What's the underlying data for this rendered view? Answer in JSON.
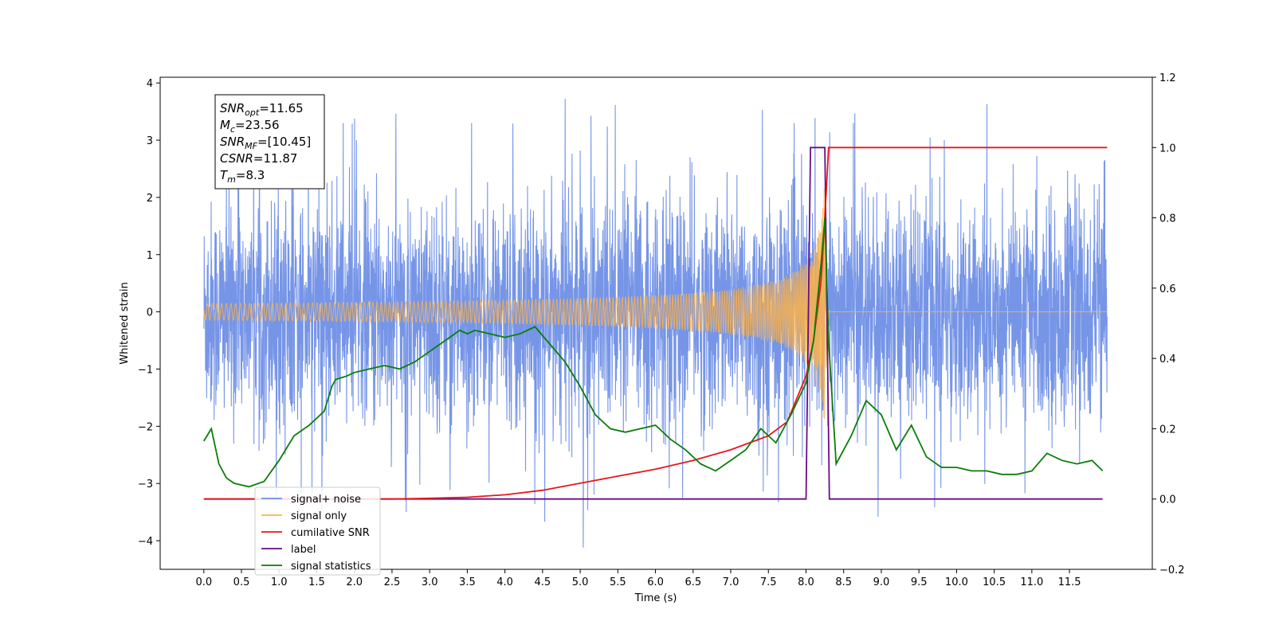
{
  "chart_data": {
    "type": "line",
    "xlabel": "Time (s)",
    "ylabel_left": "Whitened strain",
    "ylabel_right": "",
    "xlim": [
      -0.58,
      12.6
    ],
    "ylim_left": [
      -4.5,
      4.1
    ],
    "ylim_right": [
      -0.2,
      1.2
    ],
    "x_ticks": [
      "0.0",
      "0.5",
      "1.0",
      "1.5",
      "2.0",
      "2.5",
      "3.0",
      "3.5",
      "4.0",
      "4.5",
      "5.0",
      "5.5",
      "6.0",
      "6.5",
      "7.0",
      "7.5",
      "8.0",
      "8.5",
      "9.0",
      "9.5",
      "10.0",
      "10.5",
      "11.0",
      "11.5"
    ],
    "y_ticks_left": [
      "4",
      "3",
      "2",
      "1",
      "0",
      "−1",
      "−2",
      "−3",
      "−4"
    ],
    "y_ticks_right": [
      "1.2",
      "1.0",
      "0.8",
      "0.6",
      "0.4",
      "0.2",
      "0.0",
      "−0.2"
    ],
    "grid": false,
    "legend_position": "lower-left",
    "series": [
      {
        "name": "signal+ noise",
        "axis": "left",
        "color": "#6f8fe6",
        "description_points": {
          "x_range": [
            0.0,
            12.0
          ],
          "envelope": [
            -1.8,
            1.8
          ],
          "spike_max": 3.72,
          "spike_min": -4.12
        }
      },
      {
        "name": "signal only",
        "axis": "left",
        "color": "#ffb347",
        "chirp": {
          "start": 0.0,
          "merge": 8.25,
          "end": 12.0,
          "peak_amplitude": 2.4
        }
      },
      {
        "name": "cumilative SNR",
        "axis": "right",
        "color": "#e8161b",
        "x": [
          0.0,
          1.0,
          2.0,
          2.5,
          3.0,
          3.5,
          4.0,
          4.5,
          5.0,
          5.5,
          6.0,
          6.5,
          7.0,
          7.5,
          7.75,
          8.0,
          8.1,
          8.2,
          8.25,
          8.3,
          8.4,
          9.0,
          10.0,
          11.0,
          12.0
        ],
        "values": [
          0.0,
          0.0,
          0.0,
          0.0,
          0.002,
          0.005,
          0.012,
          0.025,
          0.045,
          0.065,
          0.085,
          0.11,
          0.14,
          0.18,
          0.22,
          0.35,
          0.45,
          0.62,
          0.8,
          1.0,
          1.0,
          1.0,
          1.0,
          1.0,
          1.0
        ]
      },
      {
        "name": "label",
        "axis": "right",
        "color": "#6a0d83",
        "x": [
          0.0,
          8.0,
          8.06,
          8.25,
          8.31,
          11.94
        ],
        "values": [
          0.0,
          0.0,
          1.0,
          1.0,
          0.0,
          0.0
        ]
      },
      {
        "name": "signal statistics",
        "axis": "right",
        "color": "#0a7d0a",
        "x": [
          0.0,
          0.1,
          0.2,
          0.3,
          0.4,
          0.5,
          0.6,
          0.8,
          1.0,
          1.2,
          1.4,
          1.6,
          1.7,
          1.75,
          1.9,
          2.0,
          2.2,
          2.4,
          2.6,
          2.8,
          3.0,
          3.2,
          3.4,
          3.5,
          3.6,
          3.8,
          4.0,
          4.2,
          4.4,
          4.6,
          4.8,
          5.0,
          5.2,
          5.4,
          5.6,
          5.8,
          6.0,
          6.2,
          6.4,
          6.6,
          6.8,
          7.0,
          7.2,
          7.4,
          7.6,
          7.8,
          8.0,
          8.1,
          8.2,
          8.25,
          8.3,
          8.4,
          8.6,
          8.8,
          9.0,
          9.2,
          9.4,
          9.6,
          9.8,
          10.0,
          10.2,
          10.4,
          10.6,
          10.8,
          11.0,
          11.2,
          11.4,
          11.6,
          11.8,
          11.94
        ],
        "values": [
          0.165,
          0.2,
          0.1,
          0.06,
          0.045,
          0.04,
          0.035,
          0.05,
          0.11,
          0.18,
          0.21,
          0.25,
          0.32,
          0.34,
          0.35,
          0.36,
          0.37,
          0.38,
          0.37,
          0.39,
          0.42,
          0.45,
          0.48,
          0.47,
          0.48,
          0.47,
          0.46,
          0.47,
          0.49,
          0.44,
          0.39,
          0.32,
          0.24,
          0.2,
          0.19,
          0.2,
          0.21,
          0.17,
          0.14,
          0.1,
          0.08,
          0.11,
          0.14,
          0.2,
          0.16,
          0.24,
          0.33,
          0.45,
          0.67,
          0.8,
          0.45,
          0.1,
          0.18,
          0.28,
          0.24,
          0.14,
          0.21,
          0.12,
          0.09,
          0.09,
          0.08,
          0.08,
          0.07,
          0.07,
          0.08,
          0.13,
          0.11,
          0.1,
          0.11,
          0.08
        ]
      }
    ],
    "info_box": {
      "lines": [
        {
          "main": "SNR",
          "sub": "opt",
          "value": "=11.65"
        },
        {
          "main": "M",
          "sub": "c",
          "value": "=23.56"
        },
        {
          "main": "SNR",
          "sub": "MF",
          "value": "=[10.45]"
        },
        {
          "main": "CSNR",
          "sub": "",
          "value": "=11.87"
        },
        {
          "main": "T",
          "sub": "m",
          "value": "=8.3"
        }
      ]
    },
    "legend": [
      {
        "label": "signal+ noise",
        "color": "#6f8fe6"
      },
      {
        "label": "signal only",
        "color": "#ffb347"
      },
      {
        "label": "cumilative SNR",
        "color": "#e8161b"
      },
      {
        "label": "label",
        "color": "#6a0d83"
      },
      {
        "label": "signal statistics",
        "color": "#0a7d0a"
      }
    ]
  }
}
